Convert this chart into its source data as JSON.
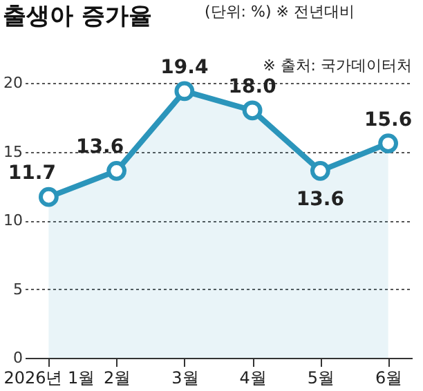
{
  "chart_data": {
    "type": "area",
    "title": "출생아 증가율",
    "subtitle": "(단위: %) ※ 전년대비",
    "annotations": [
      "※ 출처: 국가데이터처"
    ],
    "categories": [
      "2026년 1월",
      "2월",
      "3월",
      "4월",
      "5월",
      "6월"
    ],
    "series": [
      {
        "color": "#2b95bb",
        "values": [
          11.7,
          13.6,
          19.4,
          18.0,
          13.6,
          15.6
        ],
        "value_labels": [
          "11.7",
          "13.6",
          "19.4",
          "18.0",
          "13.6",
          "15.6"
        ]
      }
    ],
    "ylim": [
      0,
      20
    ],
    "yticks": [
      0,
      5,
      10,
      15,
      20
    ],
    "grid": "y",
    "marker": "circle"
  }
}
